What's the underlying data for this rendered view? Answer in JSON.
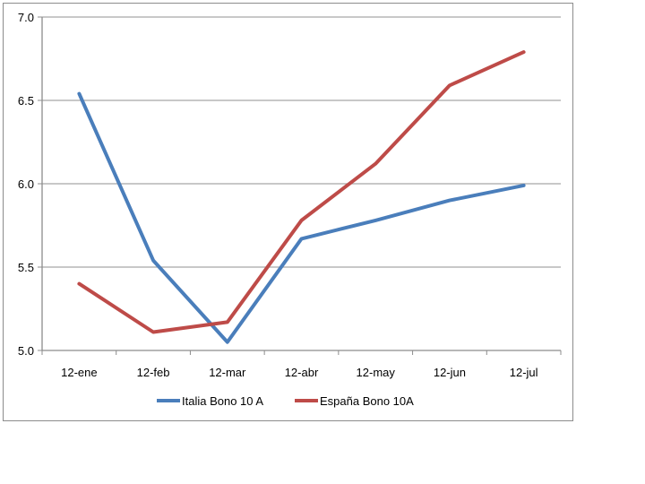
{
  "chart_data": {
    "type": "line",
    "title": "",
    "xlabel": "",
    "ylabel": "",
    "categories": [
      "12-ene",
      "12-feb",
      "12-mar",
      "12-abr",
      "12-may",
      "12-jun",
      "12-jul"
    ],
    "ylim": [
      5.0,
      7.0
    ],
    "yticks": [
      "5.0",
      "5.5",
      "6.0",
      "6.5",
      "7.0"
    ],
    "grid": true,
    "legend_position": "bottom",
    "series": [
      {
        "name": "Italia Bono 10 A",
        "color": "#4a7ebb",
        "values": [
          6.54,
          5.54,
          5.05,
          5.67,
          5.78,
          5.9,
          5.99
        ]
      },
      {
        "name": "España Bono 10A",
        "color": "#be4b48",
        "values": [
          5.4,
          5.11,
          5.17,
          5.78,
          6.12,
          6.59,
          6.79
        ]
      }
    ]
  }
}
